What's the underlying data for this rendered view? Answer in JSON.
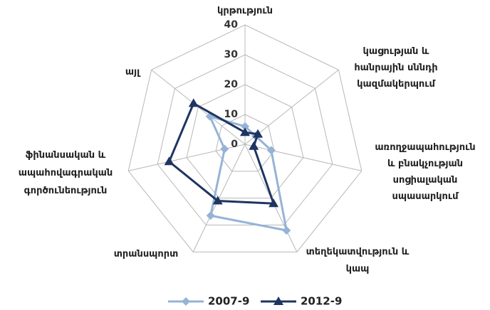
{
  "chart_data": {
    "type": "radar",
    "categories": [
      "կրթություն",
      "կացության և\nհանրային սննդի\nկազմակերպում",
      "առողջապահություն\nև բնակչության\nսոցիալական\nսպասարկում",
      "տեղեկատվություն և\nկապ",
      "տրանսպորտ",
      "ֆինանսական և\nապահովագրական\nգործունեություն",
      "այլ"
    ],
    "series": [
      {
        "name": "2007-9",
        "color": "#95b3d7",
        "marker": "diamond",
        "values": [
          6,
          4.5,
          9,
          32,
          26.5,
          7,
          15
        ]
      },
      {
        "name": "2012-9",
        "color": "#1f3560",
        "marker": "triangle",
        "values": [
          4,
          5.5,
          3,
          22,
          21,
          26,
          22
        ]
      }
    ],
    "ylim": [
      0,
      40
    ],
    "yticks": [
      0,
      10,
      20,
      30,
      40
    ],
    "grid": true,
    "legend": "bottom"
  }
}
